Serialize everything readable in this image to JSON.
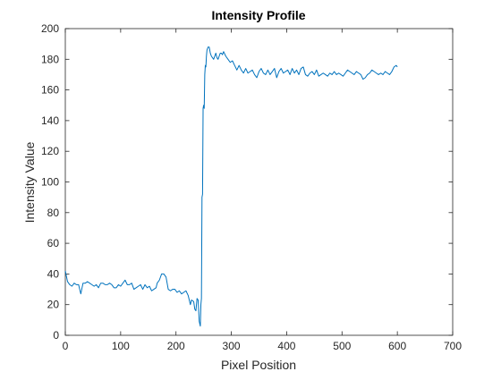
{
  "chart_data": {
    "type": "line",
    "title": "Intensity Profile",
    "xlabel": "Pixel Position",
    "ylabel": "Intensity Value",
    "xlim": [
      0,
      700
    ],
    "ylim": [
      0,
      200
    ],
    "xticks": [
      0,
      100,
      200,
      300,
      400,
      500,
      600,
      700
    ],
    "yticks": [
      0,
      20,
      40,
      60,
      80,
      100,
      120,
      140,
      160,
      180,
      200
    ],
    "grid": false,
    "legend": "none",
    "line_color": "#0072bd",
    "series": [
      {
        "x": [
          0,
          4,
          8,
          12,
          16,
          20,
          24,
          28,
          32,
          36,
          40,
          44,
          48,
          52,
          56,
          60,
          64,
          68,
          72,
          76,
          80,
          84,
          88,
          92,
          96,
          100,
          104,
          108,
          112,
          116,
          120,
          124,
          128,
          132,
          136,
          140,
          144,
          148,
          152,
          156,
          160,
          164,
          166,
          170,
          174,
          178,
          182,
          186,
          190,
          194,
          198,
          202,
          206,
          210,
          214,
          218,
          222,
          226,
          228,
          232,
          234,
          236,
          238,
          240,
          242,
          244,
          245,
          246,
          247,
          248,
          249,
          250,
          251,
          252,
          253,
          254,
          255,
          256,
          258,
          260,
          262,
          264,
          266,
          268,
          270,
          272,
          274,
          276,
          278,
          280,
          282,
          284,
          286,
          290,
          294,
          298,
          302,
          306,
          310,
          314,
          318,
          322,
          326,
          330,
          334,
          338,
          342,
          346,
          350,
          354,
          358,
          362,
          366,
          370,
          374,
          378,
          382,
          386,
          390,
          394,
          398,
          402,
          406,
          410,
          414,
          418,
          422,
          426,
          430,
          434,
          438,
          442,
          446,
          450,
          454,
          458,
          462,
          466,
          470,
          474,
          478,
          482,
          486,
          490,
          494,
          498,
          502,
          506,
          510,
          514,
          518,
          522,
          526,
          530,
          534,
          538,
          542,
          546,
          550,
          554,
          558,
          562,
          566,
          570,
          574,
          578,
          582,
          586,
          590,
          594,
          598,
          600
        ],
        "y": [
          42,
          35,
          33,
          32,
          34,
          33,
          33,
          27,
          34,
          34,
          35,
          34,
          33,
          32,
          33,
          31,
          34,
          34,
          33,
          33,
          34,
          33,
          31,
          31,
          33,
          32,
          34,
          36,
          33,
          33,
          34,
          30,
          31,
          32,
          33,
          30,
          33,
          31,
          32,
          29,
          30,
          31,
          34,
          36,
          40,
          40,
          38,
          30,
          29,
          30,
          30,
          28,
          29,
          27,
          28,
          29,
          26,
          20,
          23,
          22,
          17,
          16,
          24,
          23,
          9,
          6,
          20,
          24,
          90,
          92,
          148,
          150,
          148,
          170,
          176,
          175,
          182,
          186,
          188,
          188,
          184,
          182,
          181,
          180,
          182,
          184,
          181,
          180,
          182,
          184,
          184,
          183,
          185,
          182,
          180,
          178,
          179,
          176,
          173,
          176,
          173,
          171,
          174,
          171,
          172,
          173,
          170,
          168,
          172,
          174,
          171,
          170,
          173,
          170,
          172,
          174,
          168,
          172,
          174,
          171,
          172,
          173,
          170,
          174,
          171,
          173,
          170,
          174,
          175,
          170,
          169,
          171,
          172,
          170,
          173,
          169,
          170,
          171,
          170,
          169,
          171,
          170,
          172,
          170,
          171,
          170,
          169,
          171,
          173,
          172,
          171,
          170,
          172,
          171,
          170,
          167,
          168,
          170,
          171,
          173,
          172,
          171,
          170,
          171,
          170,
          172,
          171,
          170,
          172,
          175,
          176,
          175
        ]
      }
    ]
  }
}
